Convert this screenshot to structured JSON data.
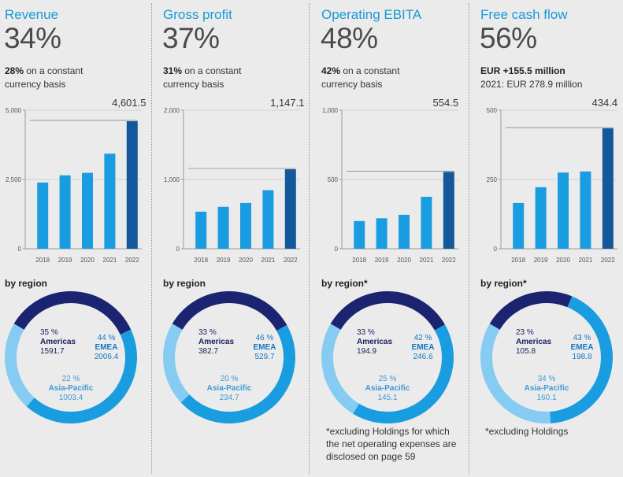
{
  "panels": [
    {
      "title": "Revenue",
      "growth": "34%",
      "sub_bold": "28%",
      "sub_rest": " on a constant",
      "sub_line2": "currency basis",
      "region_label": "by region",
      "note": ""
    },
    {
      "title": "Gross profit",
      "growth": "37%",
      "sub_bold": "31%",
      "sub_rest": " on a constant",
      "sub_line2": "currency basis",
      "region_label": "by region",
      "note": ""
    },
    {
      "title": "Operating EBITA",
      "growth": "48%",
      "sub_bold": "42%",
      "sub_rest": " on a constant",
      "sub_line2": "currency basis",
      "region_label": "by region*",
      "note": "*excluding Holdings for which the net operating expenses are disclosed on page 59"
    },
    {
      "title": "Free cash flow",
      "growth": "56%",
      "sub_bold": "EUR +155.5 million",
      "sub_rest": "",
      "sub_line2": "2021: EUR 278.9 million",
      "region_label": "by region*",
      "note": "*excluding Holdings"
    }
  ],
  "colors": {
    "bar": "#1a9de0",
    "bar_latest": "#14589c",
    "americas": "#1b2470",
    "emea": "#1a9de0",
    "asia_pacific": "#86ccf2",
    "title": "#1899d6"
  },
  "chart_data": [
    {
      "type": "bar",
      "categories": [
        "2018",
        "2019",
        "2020",
        "2021",
        "2022"
      ],
      "values": [
        2390,
        2650,
        2740,
        3430,
        4601.5
      ],
      "yticks": [
        "0",
        "2,500",
        "5,000"
      ],
      "ylim": [
        0,
        5000
      ],
      "callout": "4,601.5"
    },
    {
      "type": "bar",
      "categories": [
        "2018",
        "2019",
        "2020",
        "2021",
        "2022"
      ],
      "values": [
        535,
        605,
        660,
        845,
        1147.1
      ],
      "yticks": [
        "0",
        "1,000",
        "2,000"
      ],
      "ylim": [
        0,
        2000
      ],
      "callout": "1,147.1"
    },
    {
      "type": "bar",
      "categories": [
        "2018",
        "2019",
        "2020",
        "2021",
        "2022"
      ],
      "values": [
        200,
        220,
        245,
        375,
        554.5
      ],
      "yticks": [
        "0",
        "500",
        "1,000"
      ],
      "ylim": [
        0,
        1000
      ],
      "callout": "554.5"
    },
    {
      "type": "bar",
      "categories": [
        "2018",
        "2019",
        "2020",
        "2021",
        "2022"
      ],
      "values": [
        165,
        222,
        275,
        278.9,
        434.4
      ],
      "yticks": [
        "0",
        "250",
        "500"
      ],
      "ylim": [
        0,
        500
      ],
      "callout": "434.4"
    },
    {
      "type": "pie",
      "labels": [
        "Americas",
        "EMEA",
        "Asia-Pacific"
      ],
      "values": [
        1591.7,
        2006.4,
        1003.4
      ],
      "percent_labels": [
        "35 %",
        "44 %",
        "22 %"
      ],
      "value_labels": [
        "1591.7",
        "2006.4",
        "1003.4"
      ]
    },
    {
      "type": "pie",
      "labels": [
        "Americas",
        "EMEA",
        "Asia-Pacific"
      ],
      "values": [
        382.7,
        529.7,
        234.7
      ],
      "percent_labels": [
        "33 %",
        "46 %",
        "20 %"
      ],
      "value_labels": [
        "382.7",
        "529.7",
        "234.7"
      ]
    },
    {
      "type": "pie",
      "labels": [
        "Americas",
        "EMEA",
        "Asia-Pacific"
      ],
      "values": [
        194.9,
        246.6,
        145.1
      ],
      "percent_labels": [
        "33 %",
        "42 %",
        "25 %"
      ],
      "value_labels": [
        "194.9",
        "246.6",
        "145.1"
      ]
    },
    {
      "type": "pie",
      "labels": [
        "Americas",
        "EMEA",
        "Asia-Pacific"
      ],
      "values": [
        105.8,
        198.8,
        160.1
      ],
      "percent_labels": [
        "23 %",
        "43 %",
        "34 %"
      ],
      "value_labels": [
        "105.8",
        "198.8",
        "160.1"
      ]
    }
  ]
}
